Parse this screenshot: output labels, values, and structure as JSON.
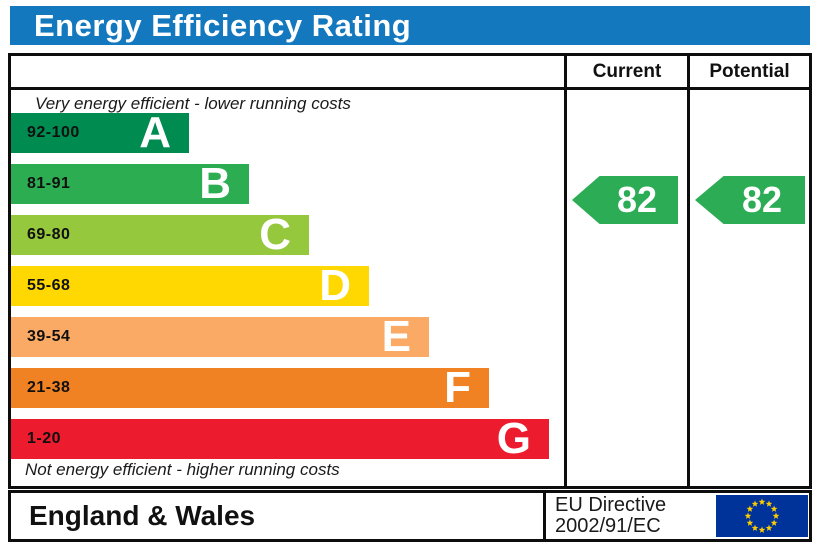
{
  "title": "Energy Efficiency Rating",
  "colors": {
    "title_bg": "#1478be",
    "border": "#0d0d0d",
    "arrow_green": "#2bac55"
  },
  "header": {
    "current": "Current",
    "potential": "Potential"
  },
  "top_note": "Very energy efficient - lower running costs",
  "bottom_note": "Not energy efficient - higher running costs",
  "bands": [
    {
      "letter": "A",
      "range": "92-100",
      "color": "#008b50"
    },
    {
      "letter": "B",
      "range": "81-91",
      "color": "#2dad52"
    },
    {
      "letter": "C",
      "range": "69-80",
      "color": "#95c83d"
    },
    {
      "letter": "D",
      "range": "55-68",
      "color": "#fed800"
    },
    {
      "letter": "E",
      "range": "39-54",
      "color": "#fbaa65"
    },
    {
      "letter": "F",
      "range": "21-38",
      "color": "#f08223"
    },
    {
      "letter": "G",
      "range": "1-20",
      "color": "#ed1b2e"
    }
  ],
  "ratings": {
    "current": {
      "value": "82",
      "band": "B",
      "color": "#2bac55"
    },
    "potential": {
      "value": "82",
      "band": "B",
      "color": "#2bac55"
    }
  },
  "footer": {
    "region": "England & Wales",
    "directive_line1": "EU Directive",
    "directive_line2": "2002/91/EC",
    "flag": {
      "name": "eu-flag",
      "background": "#003399",
      "star_color": "#ffcc00"
    }
  },
  "chart_data": {
    "type": "bar",
    "orientation": "horizontal",
    "title": "Energy Efficiency Rating",
    "categories": [
      "A",
      "B",
      "C",
      "D",
      "E",
      "F",
      "G"
    ],
    "band_ranges": [
      [
        92,
        100
      ],
      [
        81,
        91
      ],
      [
        69,
        80
      ],
      [
        55,
        68
      ],
      [
        39,
        54
      ],
      [
        21,
        38
      ],
      [
        1,
        20
      ]
    ],
    "band_colors": [
      "#008b50",
      "#2dad52",
      "#95c83d",
      "#fed800",
      "#fbaa65",
      "#f08223",
      "#ed1b2e"
    ],
    "series": [
      {
        "name": "Current",
        "value": 82,
        "band": "B"
      },
      {
        "name": "Potential",
        "value": 82,
        "band": "B"
      }
    ],
    "annotations": [
      "Very energy efficient - lower running costs",
      "Not energy efficient - higher running costs"
    ],
    "legend_position": "none",
    "grid": false,
    "footer_text": [
      "England & Wales",
      "EU Directive 2002/91/EC"
    ]
  }
}
